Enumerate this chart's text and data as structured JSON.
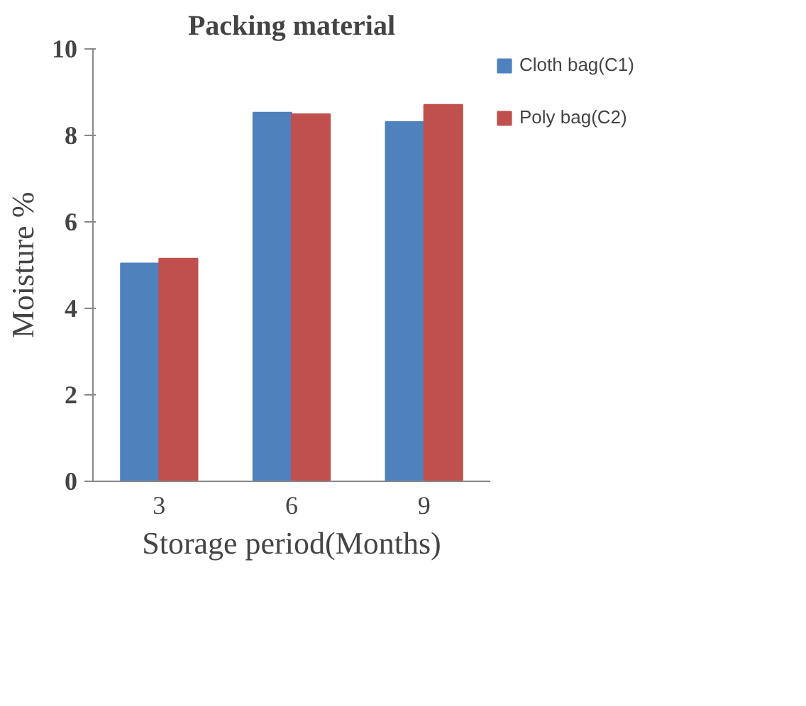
{
  "chart_data": {
    "type": "bar",
    "title": "Packing material",
    "xlabel": "Storage period(Months)",
    "ylabel": "Moisture %",
    "categories": [
      "3",
      "6",
      "9"
    ],
    "series": [
      {
        "name": "Cloth bag(C1)",
        "color": "#4f81bd",
        "values": [
          5.04,
          8.53,
          8.31
        ]
      },
      {
        "name": "Poly bag(C2)",
        "color": "#c0504d",
        "values": [
          5.15,
          8.49,
          8.71
        ]
      }
    ],
    "ylim": [
      0,
      10
    ],
    "yticks": [
      0,
      2,
      4,
      6,
      8,
      10
    ],
    "legend": "right"
  }
}
